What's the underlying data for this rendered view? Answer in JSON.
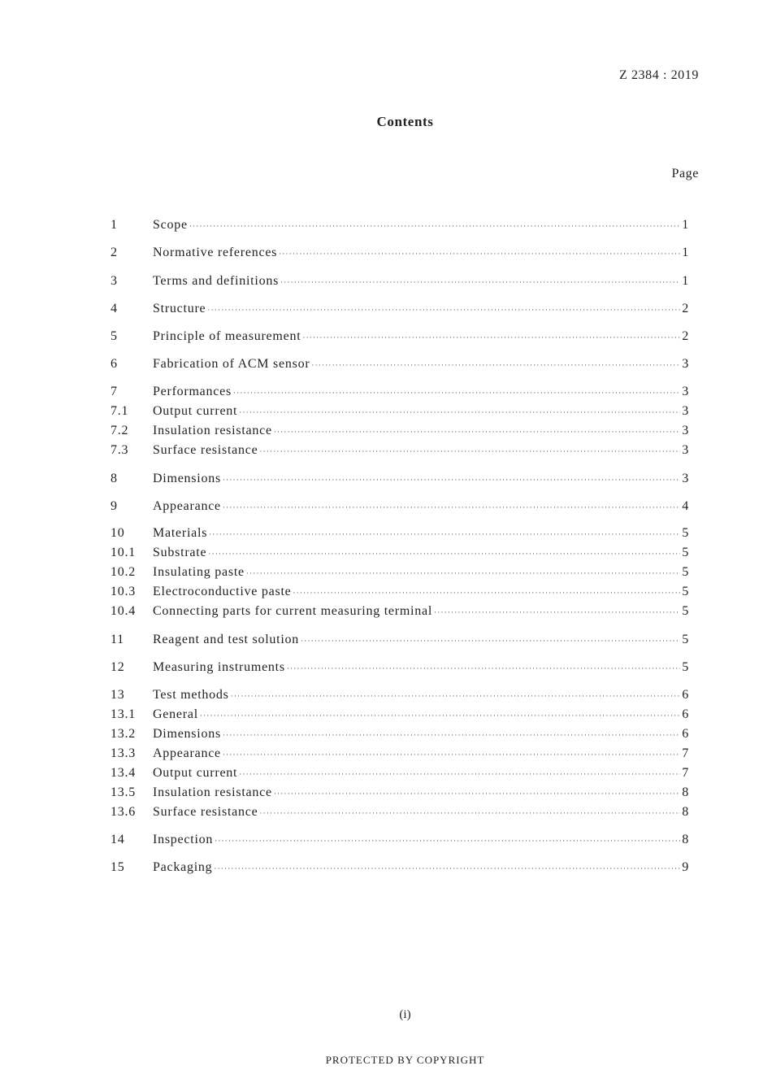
{
  "header": {
    "doc_number": "Z 2384 : 2019"
  },
  "title": "Contents",
  "page_column_label": "Page",
  "entries": [
    {
      "num": "1",
      "label": "Scope",
      "page": "1"
    },
    {
      "num": "2",
      "label": "Normative references",
      "page": "1"
    },
    {
      "num": "3",
      "label": "Terms and definitions",
      "page": "1"
    },
    {
      "num": "4",
      "label": "Structure",
      "page": "2"
    },
    {
      "num": "5",
      "label": "Principle of measurement",
      "page": "2"
    },
    {
      "num": "6",
      "label": "Fabrication of ACM sensor",
      "page": "3"
    },
    {
      "num": "7",
      "label": "Performances",
      "page": "3"
    },
    {
      "num": "7.1",
      "label": "Output current",
      "page": "3"
    },
    {
      "num": "7.2",
      "label": "Insulation resistance",
      "page": "3"
    },
    {
      "num": "7.3",
      "label": "Surface resistance",
      "page": "3"
    },
    {
      "num": "8",
      "label": "Dimensions",
      "page": "3"
    },
    {
      "num": "9",
      "label": "Appearance",
      "page": "4"
    },
    {
      "num": "10",
      "label": "Materials",
      "page": "5"
    },
    {
      "num": "10.1",
      "label": "Substrate",
      "page": "5"
    },
    {
      "num": "10.2",
      "label": "Insulating paste",
      "page": "5"
    },
    {
      "num": "10.3",
      "label": "Electroconductive paste",
      "page": "5"
    },
    {
      "num": "10.4",
      "label": "Connecting parts for current measuring terminal",
      "page": "5"
    },
    {
      "num": "11",
      "label": "Reagent and test solution",
      "page": "5"
    },
    {
      "num": "12",
      "label": "Measuring instruments",
      "page": "5"
    },
    {
      "num": "13",
      "label": "Test methods",
      "page": "6"
    },
    {
      "num": "13.1",
      "label": "General",
      "page": "6"
    },
    {
      "num": "13.2",
      "label": "Dimensions",
      "page": "6"
    },
    {
      "num": "13.3",
      "label": "Appearance",
      "page": "7"
    },
    {
      "num": "13.4",
      "label": "Output current",
      "page": "7"
    },
    {
      "num": "13.5",
      "label": "Insulation resistance",
      "page": "8"
    },
    {
      "num": "13.6",
      "label": "Surface resistance",
      "page": "8"
    },
    {
      "num": "14",
      "label": "Inspection",
      "page": "8"
    },
    {
      "num": "15",
      "label": "Packaging",
      "page": "9"
    }
  ],
  "footer": {
    "folio": "(i)",
    "notice": "PROTECTED BY COPYRIGHT"
  }
}
